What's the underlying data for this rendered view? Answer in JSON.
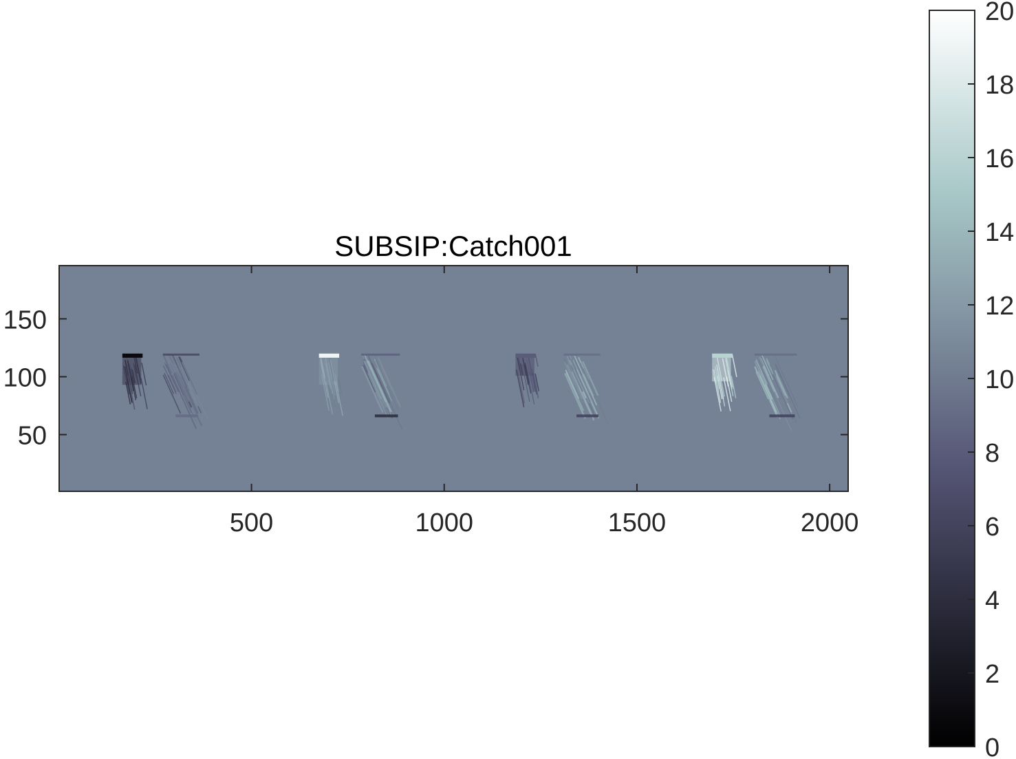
{
  "chart_data": {
    "type": "heatmap",
    "title": "SUBSIP:Catch001",
    "xlabel": "",
    "ylabel": "",
    "xlim": [
      1,
      2048
    ],
    "ylim": [
      1,
      196
    ],
    "x_ticks": [
      500,
      1000,
      1500,
      2000
    ],
    "y_ticks": [
      50,
      100,
      150
    ],
    "y_direction": "normal",
    "colormap": "bone",
    "background_value": 10.5,
    "colorbar": {
      "location": "right",
      "limits": [
        0,
        20
      ],
      "ticks": [
        0,
        2,
        4,
        6,
        8,
        10,
        12,
        14,
        16,
        18,
        20
      ]
    },
    "features": [
      {
        "x_range": [
          165,
          235
        ],
        "y_range": [
          75,
          120
        ],
        "value": 5,
        "kind": "dark-block",
        "top_band": 1
      },
      {
        "x_range": [
          270,
          365
        ],
        "y_range": [
          65,
          120
        ],
        "value": 9,
        "kind": "streaks",
        "bottom_band": 9
      },
      {
        "x_range": [
          675,
          745
        ],
        "y_range": [
          75,
          120
        ],
        "value": 12,
        "kind": "light-block",
        "top_band": 19
      },
      {
        "x_range": [
          785,
          885
        ],
        "y_range": [
          65,
          120
        ],
        "value": 11,
        "kind": "streaks",
        "bottom_band": 4
      },
      {
        "x_range": [
          1185,
          1255
        ],
        "y_range": [
          88,
          120
        ],
        "value": 7,
        "kind": "dark-block",
        "top_band": 8
      },
      {
        "x_range": [
          1310,
          1405
        ],
        "y_range": [
          65,
          120
        ],
        "value": 12,
        "kind": "streaks",
        "bottom_band": 6
      },
      {
        "x_range": [
          1695,
          1765
        ],
        "y_range": [
          80,
          120
        ],
        "value": 17,
        "kind": "light-block",
        "top_band": 16
      },
      {
        "x_range": [
          1805,
          1915
        ],
        "y_range": [
          65,
          120
        ],
        "value": 12,
        "kind": "streaks",
        "bottom_band": 6
      }
    ]
  }
}
